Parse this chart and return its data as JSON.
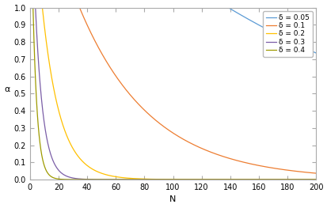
{
  "title": "",
  "xlabel": "N",
  "ylabel": "α",
  "xlim": [
    0,
    200
  ],
  "ylim": [
    0,
    1
  ],
  "xticks": [
    0,
    20,
    40,
    60,
    80,
    100,
    120,
    140,
    160,
    180,
    200
  ],
  "yticks": [
    0,
    0.1,
    0.2,
    0.3,
    0.4,
    0.5,
    0.6,
    0.7,
    0.8,
    0.9,
    1.0
  ],
  "delta_values": [
    0.05,
    0.1,
    0.2,
    0.3,
    0.4
  ],
  "line_colors": [
    "#5B9BD5",
    "#ED7D31",
    "#FFC000",
    "#7B5EA7",
    "#9E9A00"
  ],
  "legend_labels": [
    "δ = 0.05",
    "δ = 0.1",
    "δ = 0.2",
    "δ = 0.3",
    "δ = 0.4"
  ],
  "N_min": 0,
  "N_max": 200,
  "N_points": 2000,
  "background_color": "#FFFFFF"
}
